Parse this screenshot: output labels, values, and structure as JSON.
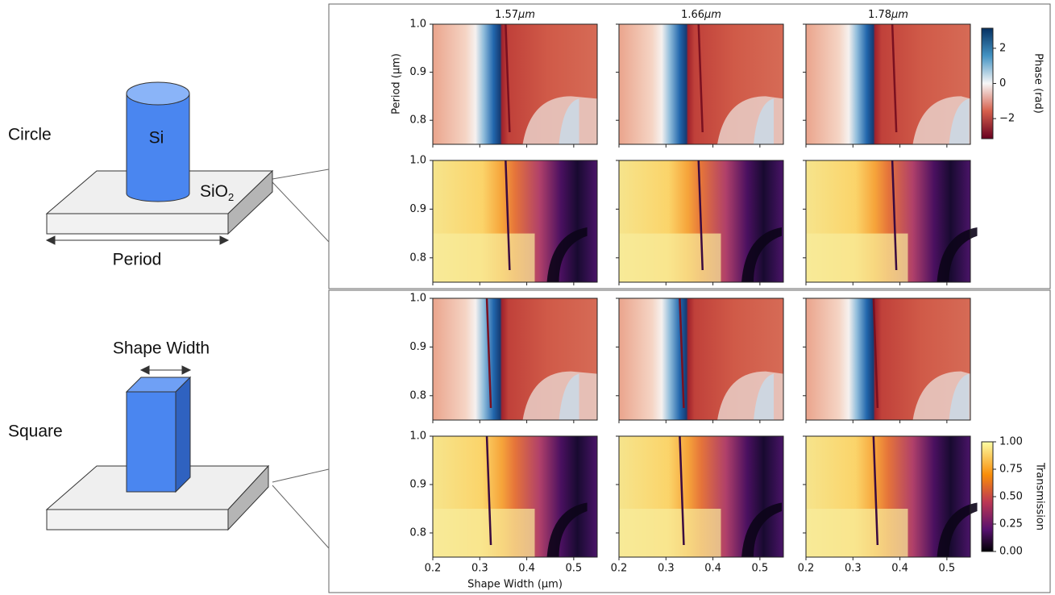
{
  "diagram": {
    "circle": {
      "label": "Circle",
      "pillar": "Si",
      "substrate": "SiO",
      "substrate_sub": "2",
      "dimension": "Period"
    },
    "square": {
      "label": "Square",
      "dimension": "Shape Width"
    }
  },
  "plots": {
    "wavelengths": [
      "1.57",
      "1.66",
      "1.78"
    ],
    "wavelength_unit": "μm",
    "y_label": "Period (μm)",
    "x_label": "Shape Width (μm)",
    "xlim": [
      0.2,
      0.55
    ],
    "xticks": [
      0.2,
      0.3,
      0.4,
      0.5
    ],
    "ylim": [
      0.75,
      1.0
    ],
    "yticks": [
      {
        "value": 1.0,
        "label": "1.0"
      },
      0.9,
      0.8
    ],
    "phase_colorbar": {
      "label": "Phase (rad)",
      "lim": [
        -3.1416,
        3.1416
      ],
      "ticks": [
        2,
        0,
        {
          "value": -2,
          "label": "−2"
        }
      ]
    },
    "transmission_colorbar": {
      "label": "Transmission",
      "lim": [
        0,
        1
      ],
      "ticks": [
        {
          "value": 1,
          "label": "1.00"
        },
        {
          "value": 0.75,
          "label": "0.75"
        },
        {
          "value": 0.5,
          "label": "0.50"
        },
        {
          "value": 0.25,
          "label": "0.25"
        },
        {
          "value": 0,
          "label": "0.00"
        }
      ]
    }
  }
}
